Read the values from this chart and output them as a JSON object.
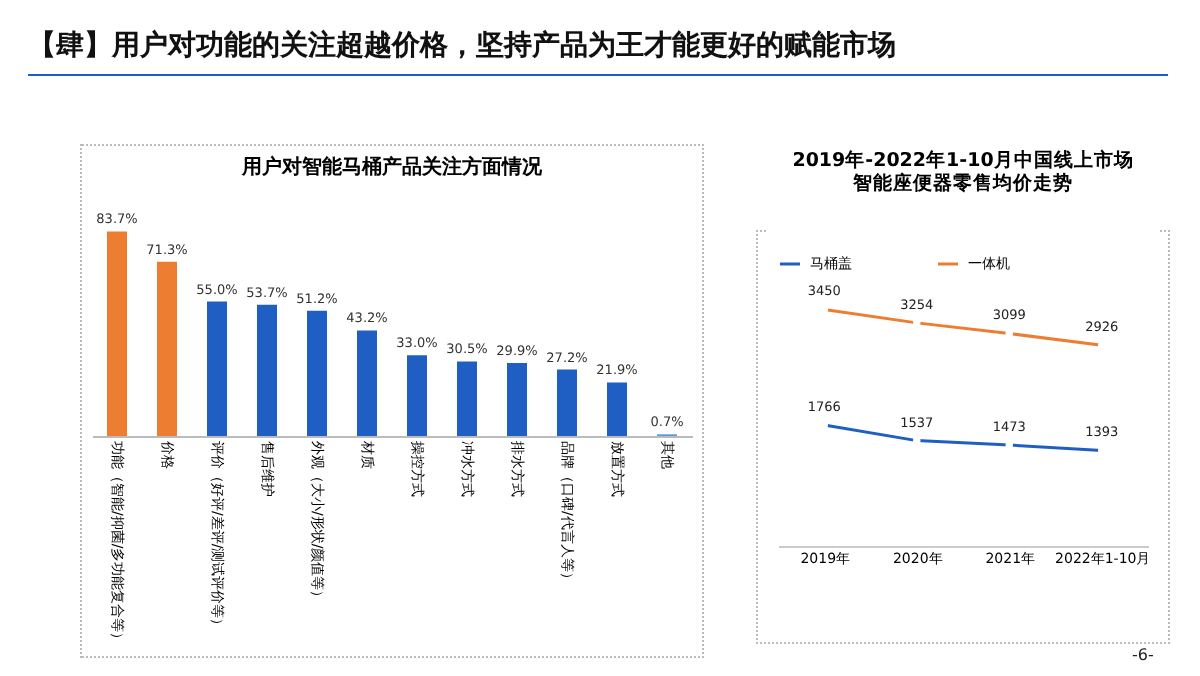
{
  "chart_data": [
    {
      "type": "bar",
      "title": "用户对智能马桶产品关注方面情况",
      "categories": [
        "功能（智能/抑菌/多功能复合等）",
        "价格",
        "评价（好评/差评/测试评价等）",
        "售后维护",
        "外观（大小/形状/颜值等）",
        "材质",
        "操控方式",
        "冲水方式",
        "排水方式",
        "品牌（口碑/代言人等）",
        "放置方式",
        "其他"
      ],
      "values": [
        83.7,
        71.3,
        55.0,
        53.7,
        51.2,
        43.2,
        33.0,
        30.5,
        29.9,
        27.2,
        21.9,
        0.7
      ],
      "colors": [
        "#ed7d31",
        "#ed7d31",
        "#1f5fc4",
        "#1f5fc4",
        "#1f5fc4",
        "#1f5fc4",
        "#1f5fc4",
        "#1f5fc4",
        "#1f5fc4",
        "#1f5fc4",
        "#1f5fc4",
        "#5b9bd5"
      ],
      "value_labels": [
        "83.7%",
        "71.3%",
        "55.0%",
        "53.7%",
        "51.2%",
        "43.2%",
        "33.0%",
        "30.5%",
        "29.9%",
        "27.2%",
        "21.9%",
        "0.7%"
      ],
      "tick_labels": "x",
      "annotations": [
        "【肆】用户对功能的关注超越价格，坚持产品为王才能更好的赋能市场",
        "-6-"
      ]
    },
    {
      "type": "line",
      "title": "2019年-2022年1-10月中国线上市场",
      "subtitle": "智能座便器零售均价走势",
      "categories": [
        "2019年",
        "2020年",
        "2021年",
        "2022年1-10月"
      ],
      "series": [
        {
          "name": "马桶盖",
          "color": "#1f5fc4",
          "values": [
            1766,
            1537,
            1473,
            1393
          ]
        },
        {
          "name": "一体机",
          "color": "#ed7d31",
          "values": [
            3450,
            3254,
            3099,
            2926
          ]
        }
      ],
      "data_labels": true,
      "marker": "circle",
      "legend": "top",
      "tick_labels": "x"
    }
  ]
}
